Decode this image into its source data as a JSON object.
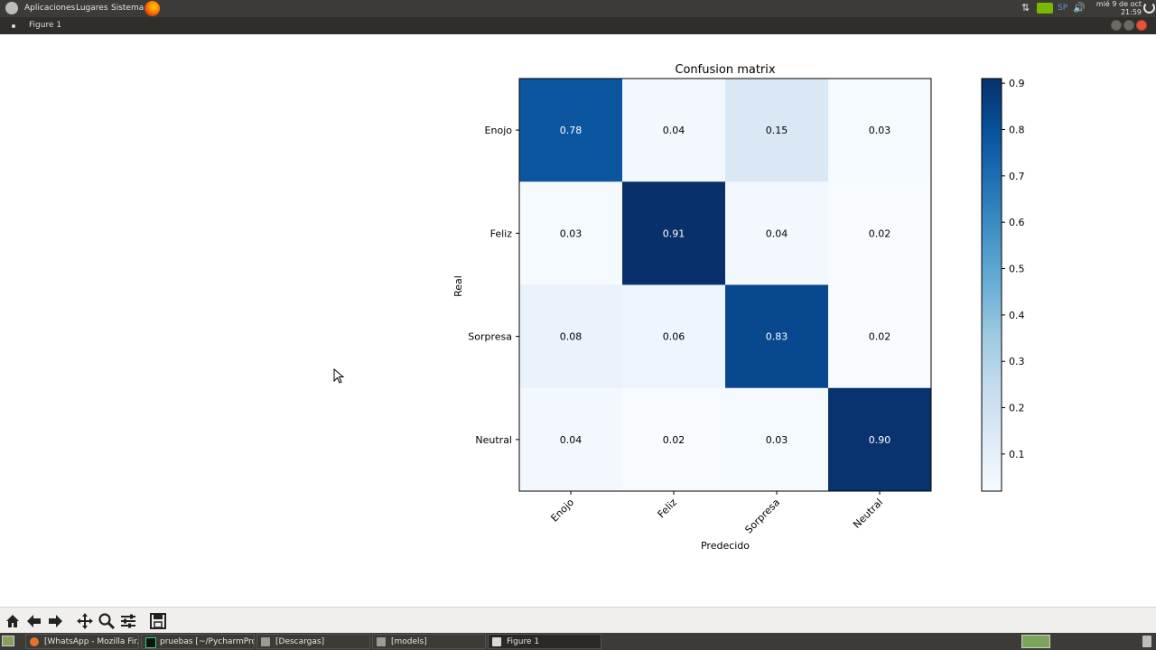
{
  "top_panel": {
    "menus": [
      "Aplicaciones",
      "Lugares",
      "Sistema"
    ],
    "keyboard_layout": "SP",
    "clock_date": "mié  9 de oct",
    "clock_time": "21:59"
  },
  "window": {
    "title": "Figure 1"
  },
  "chart_data": {
    "type": "heatmap",
    "title": "Confusion matrix",
    "xlabel": "Predecido",
    "ylabel": "Real",
    "x_categories": [
      "Enojo",
      "Feliz",
      "Sorpresa",
      "Neutral"
    ],
    "y_categories": [
      "Enojo",
      "Feliz",
      "Sorpresa",
      "Neutral"
    ],
    "values": [
      [
        0.78,
        0.04,
        0.15,
        0.03
      ],
      [
        0.03,
        0.91,
        0.04,
        0.02
      ],
      [
        0.08,
        0.06,
        0.83,
        0.02
      ],
      [
        0.04,
        0.02,
        0.03,
        0.9
      ]
    ],
    "cell_labels": [
      [
        "0.78",
        "0.04",
        "0.15",
        "0.03"
      ],
      [
        "0.03",
        "0.91",
        "0.04",
        "0.02"
      ],
      [
        "0.08",
        "0.06",
        "0.83",
        "0.02"
      ],
      [
        "0.04",
        "0.02",
        "0.03",
        "0.90"
      ]
    ],
    "colormap": "Blues",
    "colorbar": {
      "range": [
        0.02,
        0.91
      ],
      "ticks": [
        0.9,
        0.8,
        0.7,
        0.6,
        0.5,
        0.4,
        0.3,
        0.2,
        0.1
      ],
      "tick_labels": [
        "0.9",
        "0.8",
        "0.7",
        "0.6",
        "0.5",
        "0.4",
        "0.3",
        "0.2",
        "0.1"
      ]
    }
  },
  "toolbar": {
    "buttons": [
      "home-icon",
      "back-arrow-icon",
      "forward-arrow-icon",
      "pan-icon",
      "zoom-icon",
      "configure-subplots-icon",
      "save-icon"
    ]
  },
  "taskbar": {
    "items": [
      "[WhatsApp - Mozilla Fir...",
      "pruebas [~/PycharmPro...",
      "[Descargas]",
      "[models]",
      "Figure 1"
    ]
  },
  "colors": {
    "panel": "#3c3b37",
    "titlebar": "#2f2e2b",
    "close": "#e3543c",
    "cmap_low": "#f7fbff",
    "cmap_high": "#08306b"
  }
}
